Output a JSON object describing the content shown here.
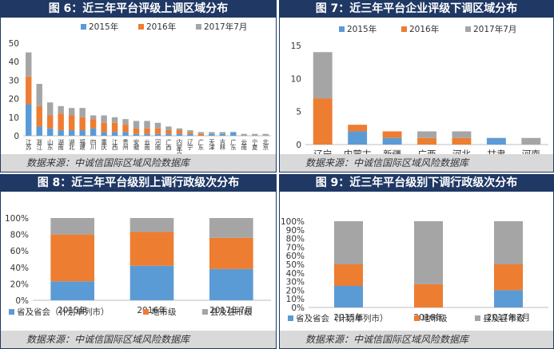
{
  "colors": {
    "s1": "#5b9bd5",
    "s2": "#ed7d31",
    "s3": "#a5a5a5",
    "header": "#1f3864"
  },
  "panels": [
    {
      "title": "图 6：近三年平台评级上调区域分布",
      "source": "数据来源：中诚信国际区域风险数据库"
    },
    {
      "title": "图 7：近三年平台企业评级下调区域分布",
      "source": "数据来源：中诚信国际区域风险数据库"
    },
    {
      "title": "图 8：近三年平台级别上调行政级次分布",
      "source": "数据来源：中诚信国际区域风险数据库"
    },
    {
      "title": "图 9：近三年平台级别下调行政级次分布",
      "source": "数据来源：中诚信国际区域风险数据库"
    }
  ],
  "chart_data": [
    {
      "type": "bar",
      "stacked": true,
      "categories": [
        "江苏",
        "浙江",
        "山东",
        "湖南",
        "湖北",
        "福建",
        "四川",
        "重庆",
        "江西",
        "贵州",
        "安徽",
        "云南",
        "河南",
        "广西",
        "内蒙古",
        "辽宁",
        "广东",
        "天津",
        "吉林",
        "广东",
        "云南",
        "宁夏",
        "北京"
      ],
      "series": [
        {
          "name": "2015年",
          "values": [
            17,
            5,
            4,
            3,
            3,
            3,
            4,
            2,
            2,
            2,
            1,
            1,
            1,
            1,
            1,
            1,
            0,
            1,
            1,
            2,
            0,
            0,
            0
          ]
        },
        {
          "name": "2016年",
          "values": [
            15,
            11,
            7,
            9,
            8,
            7,
            5,
            5,
            5,
            4,
            3,
            3,
            3,
            2,
            2,
            1,
            1,
            0,
            0,
            0,
            0,
            0,
            0
          ]
        },
        {
          "name": "2017年7月",
          "values": [
            13,
            12,
            7,
            4,
            4,
            5,
            2,
            4,
            3,
            3,
            4,
            4,
            3,
            2,
            1,
            1,
            1,
            1,
            1,
            0,
            1,
            1,
            1
          ]
        }
      ],
      "ylim": [
        0,
        50
      ],
      "yticks": [
        "0",
        "10",
        "20",
        "30",
        "40",
        "50"
      ],
      "legend": "top"
    },
    {
      "type": "bar",
      "stacked": true,
      "categories": [
        "辽宁",
        "内蒙古",
        "新疆",
        "广西",
        "河北",
        "甘肃",
        "河南"
      ],
      "series": [
        {
          "name": "2015年",
          "values": [
            0,
            2,
            1,
            0,
            0,
            1,
            0
          ]
        },
        {
          "name": "2016年",
          "values": [
            7,
            1,
            1,
            1,
            1,
            0,
            0
          ]
        },
        {
          "name": "2017年7月",
          "values": [
            7,
            0,
            0,
            1,
            1,
            0,
            1
          ]
        }
      ],
      "ylim": [
        0,
        15
      ],
      "yticks": [
        "0",
        "5",
        "10",
        "15"
      ],
      "legend": "top"
    },
    {
      "type": "bar",
      "stacked": true,
      "percent": true,
      "categories": [
        "2015年",
        "2016年",
        "2017年7月"
      ],
      "series": [
        {
          "name": "省及省会（计划单列市）",
          "values": [
            23,
            42,
            38
          ]
        },
        {
          "name": "地市级",
          "values": [
            57,
            41,
            38
          ]
        },
        {
          "name": "县及县市级",
          "values": [
            20,
            17,
            24
          ]
        }
      ],
      "ylim": [
        0,
        100
      ],
      "yticks": [
        "0%",
        "20%",
        "40%",
        "60%",
        "80%",
        "100%"
      ],
      "legend": "bottom"
    },
    {
      "type": "bar",
      "stacked": true,
      "percent": true,
      "categories": [
        "2015年",
        "2016年",
        "2017年7月"
      ],
      "series": [
        {
          "name": "省及省会（计划单列市）",
          "values": [
            25,
            0,
            20
          ]
        },
        {
          "name": "地市级",
          "values": [
            25,
            27,
            30
          ]
        },
        {
          "name": "县及县市级",
          "values": [
            50,
            73,
            50
          ]
        }
      ],
      "ylim": [
        0,
        100
      ],
      "yticks": [
        "0%",
        "10%",
        "20%",
        "30%",
        "40%",
        "50%",
        "60%",
        "70%",
        "80%",
        "90%",
        "100%"
      ],
      "legend": "bottom"
    }
  ]
}
